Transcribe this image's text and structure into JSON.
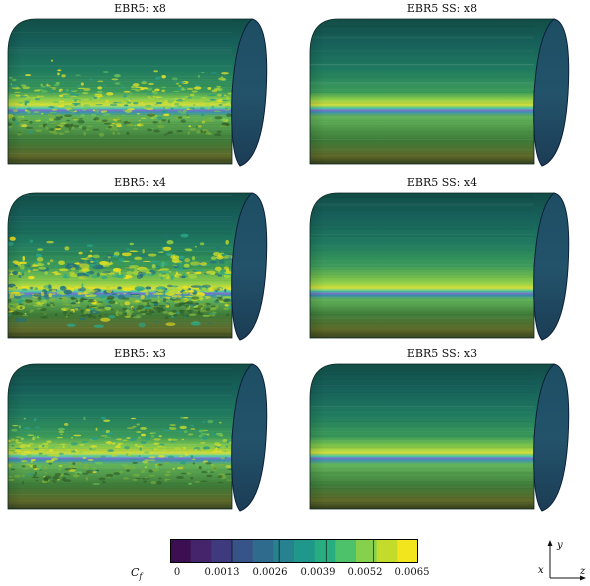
{
  "panels": [
    {
      "title": "EBR5: x8",
      "style": "turbulent",
      "band": 0.62
    },
    {
      "title": "EBR5 SS: x8",
      "style": "smooth",
      "band": 0.62
    },
    {
      "title": "EBR5: x4",
      "style": "turbulent-strong",
      "band": 0.68
    },
    {
      "title": "EBR5 SS: x4",
      "style": "smooth",
      "band": 0.68
    },
    {
      "title": "EBR5: x3",
      "style": "turbulent-mild",
      "band": 0.64
    },
    {
      "title": "EBR5 SS: x3",
      "style": "smooth",
      "band": 0.64
    }
  ],
  "colorbar": {
    "label": "C",
    "label_sub": "f",
    "ticks": [
      "0",
      "0.0013",
      "0.0026",
      "0.0039",
      "0.0052",
      "0.0065"
    ],
    "colors": [
      "#3b0f52",
      "#44246a",
      "#3f3a7e",
      "#385387",
      "#2f6b8c",
      "#27818e",
      "#1f978b",
      "#28ad80",
      "#4ec16b",
      "#86d04b",
      "#c3dc2c",
      "#f2e51d"
    ]
  },
  "axes": {
    "y": "y",
    "x": "x",
    "z": "z"
  }
}
